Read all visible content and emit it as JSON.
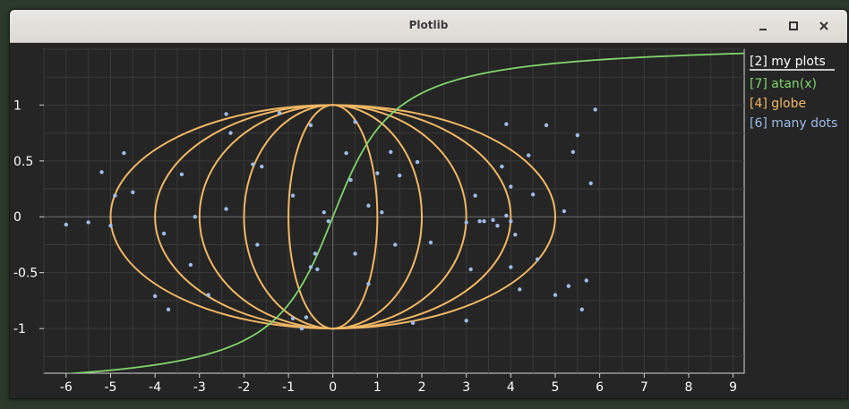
{
  "window": {
    "title": "Plotlib",
    "buttons": {
      "minimize": "minimize-icon",
      "maximize": "maximize-icon",
      "close": "close-icon"
    }
  },
  "legend": {
    "title": "[2] my plots",
    "items": [
      {
        "label": "[7] atan(x)",
        "color": "#7fd56c"
      },
      {
        "label": "[4] globe",
        "color": "#f2b764"
      },
      {
        "label": "[6] many dots",
        "color": "#9dbce8"
      }
    ]
  },
  "chart_data": {
    "type": "scatter",
    "xlim": [
      -6.5,
      9.25
    ],
    "ylim": [
      -1.4,
      1.5
    ],
    "x_ticks": [
      -6,
      -5,
      -4,
      -3,
      -2,
      -1,
      0,
      1,
      2,
      3,
      4,
      5,
      6,
      7,
      8,
      9
    ],
    "y_ticks": [
      -1,
      -0.5,
      0,
      0.5,
      1
    ],
    "y_tick_labels": [
      "-1",
      "-0.5",
      "0",
      "0.5",
      "1"
    ],
    "grid": true,
    "legend_position": "right",
    "series": [
      {
        "name": "[7] atan(x)",
        "kind": "line",
        "function": "atan",
        "x_range": [
          -6.5,
          9.25
        ],
        "color": "#7fd56c"
      },
      {
        "name": "[4] globe",
        "kind": "ellipses",
        "center": [
          0,
          0
        ],
        "ry": 1.0,
        "rx_values": [
          5,
          4,
          3,
          2,
          1
        ],
        "color": "#f2b764"
      },
      {
        "name": "[6] many dots",
        "kind": "scatter",
        "color": "#9dbce8",
        "points": [
          [
            -6.0,
            -0.07
          ],
          [
            -5.5,
            -0.05
          ],
          [
            -5.0,
            -0.08
          ],
          [
            -5.2,
            0.4
          ],
          [
            -4.7,
            0.57
          ],
          [
            -4.9,
            0.19
          ],
          [
            -4.5,
            0.22
          ],
          [
            -4.0,
            -0.71
          ],
          [
            -3.8,
            -0.15
          ],
          [
            -3.7,
            -0.83
          ],
          [
            -3.4,
            0.38
          ],
          [
            -3.2,
            -0.43
          ],
          [
            -3.1,
            0.0
          ],
          [
            -2.8,
            -0.7
          ],
          [
            -2.4,
            0.92
          ],
          [
            -2.3,
            0.75
          ],
          [
            -2.4,
            0.07
          ],
          [
            -1.8,
            0.47
          ],
          [
            -1.7,
            -0.25
          ],
          [
            -1.6,
            0.45
          ],
          [
            -1.2,
            0.93
          ],
          [
            -0.9,
            -0.91
          ],
          [
            -0.9,
            0.19
          ],
          [
            -0.7,
            -1.0
          ],
          [
            -0.6,
            -0.9
          ],
          [
            -0.5,
            -0.45
          ],
          [
            -0.4,
            -0.33
          ],
          [
            -0.35,
            -0.47
          ],
          [
            -0.2,
            0.04
          ],
          [
            -0.5,
            0.82
          ],
          [
            -0.1,
            -0.04
          ],
          [
            0.3,
            0.57
          ],
          [
            0.4,
            0.33
          ],
          [
            0.5,
            -0.33
          ],
          [
            0.5,
            0.85
          ],
          [
            0.8,
            0.1
          ],
          [
            0.8,
            -0.6
          ],
          [
            1.0,
            0.39
          ],
          [
            1.1,
            0.04
          ],
          [
            1.3,
            0.58
          ],
          [
            1.4,
            -0.25
          ],
          [
            1.5,
            0.37
          ],
          [
            1.8,
            -0.95
          ],
          [
            1.9,
            0.49
          ],
          [
            2.2,
            -0.23
          ],
          [
            3.0,
            -0.93
          ],
          [
            3.1,
            -0.47
          ],
          [
            3.2,
            0.19
          ],
          [
            3.3,
            -0.04
          ],
          [
            3.4,
            -0.04
          ],
          [
            3.6,
            -0.03
          ],
          [
            3.7,
            -0.08
          ],
          [
            3.8,
            0.45
          ],
          [
            3.9,
            0.83
          ],
          [
            3.9,
            0.01
          ],
          [
            4.0,
            0.27
          ],
          [
            4.0,
            -0.04
          ],
          [
            4.1,
            -0.16
          ],
          [
            4.2,
            -0.65
          ],
          [
            4.4,
            0.55
          ],
          [
            4.5,
            0.2
          ],
          [
            4.6,
            -0.38
          ],
          [
            4.8,
            0.82
          ],
          [
            5.0,
            -0.7
          ],
          [
            5.2,
            0.05
          ],
          [
            5.3,
            -0.62
          ],
          [
            5.4,
            0.58
          ],
          [
            5.5,
            0.73
          ],
          [
            5.6,
            -0.83
          ],
          [
            5.7,
            -0.57
          ],
          [
            5.8,
            0.3
          ],
          [
            5.9,
            0.96
          ],
          [
            4.0,
            -0.45
          ],
          [
            3.0,
            -0.05
          ]
        ]
      }
    ]
  }
}
